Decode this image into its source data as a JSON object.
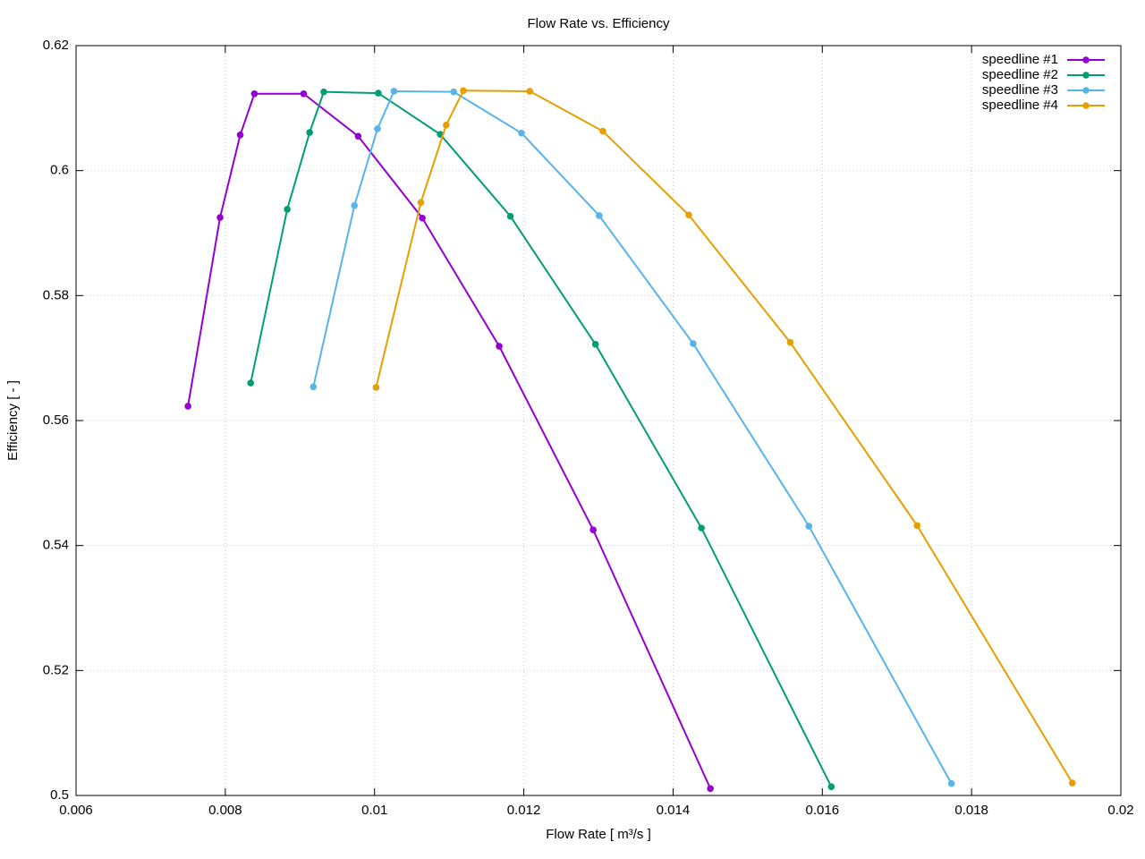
{
  "chart_data": {
    "type": "line",
    "title": "Flow Rate vs. Efficiency",
    "xlabel": "Flow Rate [ m³/s ]",
    "ylabel": "Efficiency [ - ]",
    "xlim": [
      0.006,
      0.02
    ],
    "ylim": [
      0.5,
      0.62
    ],
    "xticks": [
      0.006,
      0.008,
      0.01,
      0.012,
      0.014,
      0.016,
      0.018,
      0.02
    ],
    "yticks": [
      0.5,
      0.52,
      0.54,
      0.56,
      0.58,
      0.6,
      0.62
    ],
    "grid": true,
    "legend": "top-right",
    "series": [
      {
        "name": "speedline #1",
        "color": "#9400d3",
        "x": [
          0.0075,
          0.00793,
          0.0082,
          0.00839,
          0.00905,
          0.00978,
          0.01064,
          0.01167,
          0.01293,
          0.0145
        ],
        "values": [
          0.5623,
          0.5925,
          0.6057,
          0.6123,
          0.6123,
          0.6055,
          0.5924,
          0.5719,
          0.5425,
          0.5011
        ]
      },
      {
        "name": "speedline #2",
        "color": "#009e73",
        "x": [
          0.00834,
          0.00883,
          0.00913,
          0.00932,
          0.01005,
          0.01088,
          0.01182,
          0.01296,
          0.01438,
          0.01612
        ],
        "values": [
          0.566,
          0.5938,
          0.6061,
          0.6126,
          0.6124,
          0.6058,
          0.5927,
          0.5722,
          0.5428,
          0.5014
        ]
      },
      {
        "name": "speedline #3",
        "color": "#56b4e9",
        "x": [
          0.00918,
          0.00973,
          0.01004,
          0.01026,
          0.01106,
          0.01197,
          0.01301,
          0.01427,
          0.01582,
          0.01773
        ],
        "values": [
          0.5654,
          0.5944,
          0.6067,
          0.6127,
          0.6126,
          0.606,
          0.5928,
          0.5723,
          0.5431,
          0.5019
        ]
      },
      {
        "name": "speedline #4",
        "color": "#e69f00",
        "x": [
          0.01002,
          0.01062,
          0.01096,
          0.01119,
          0.01208,
          0.01306,
          0.01421,
          0.01557,
          0.01727,
          0.01935
        ],
        "values": [
          0.5653,
          0.5949,
          0.6073,
          0.6128,
          0.6127,
          0.6063,
          0.5929,
          0.5725,
          0.5432,
          0.502
        ]
      }
    ]
  }
}
